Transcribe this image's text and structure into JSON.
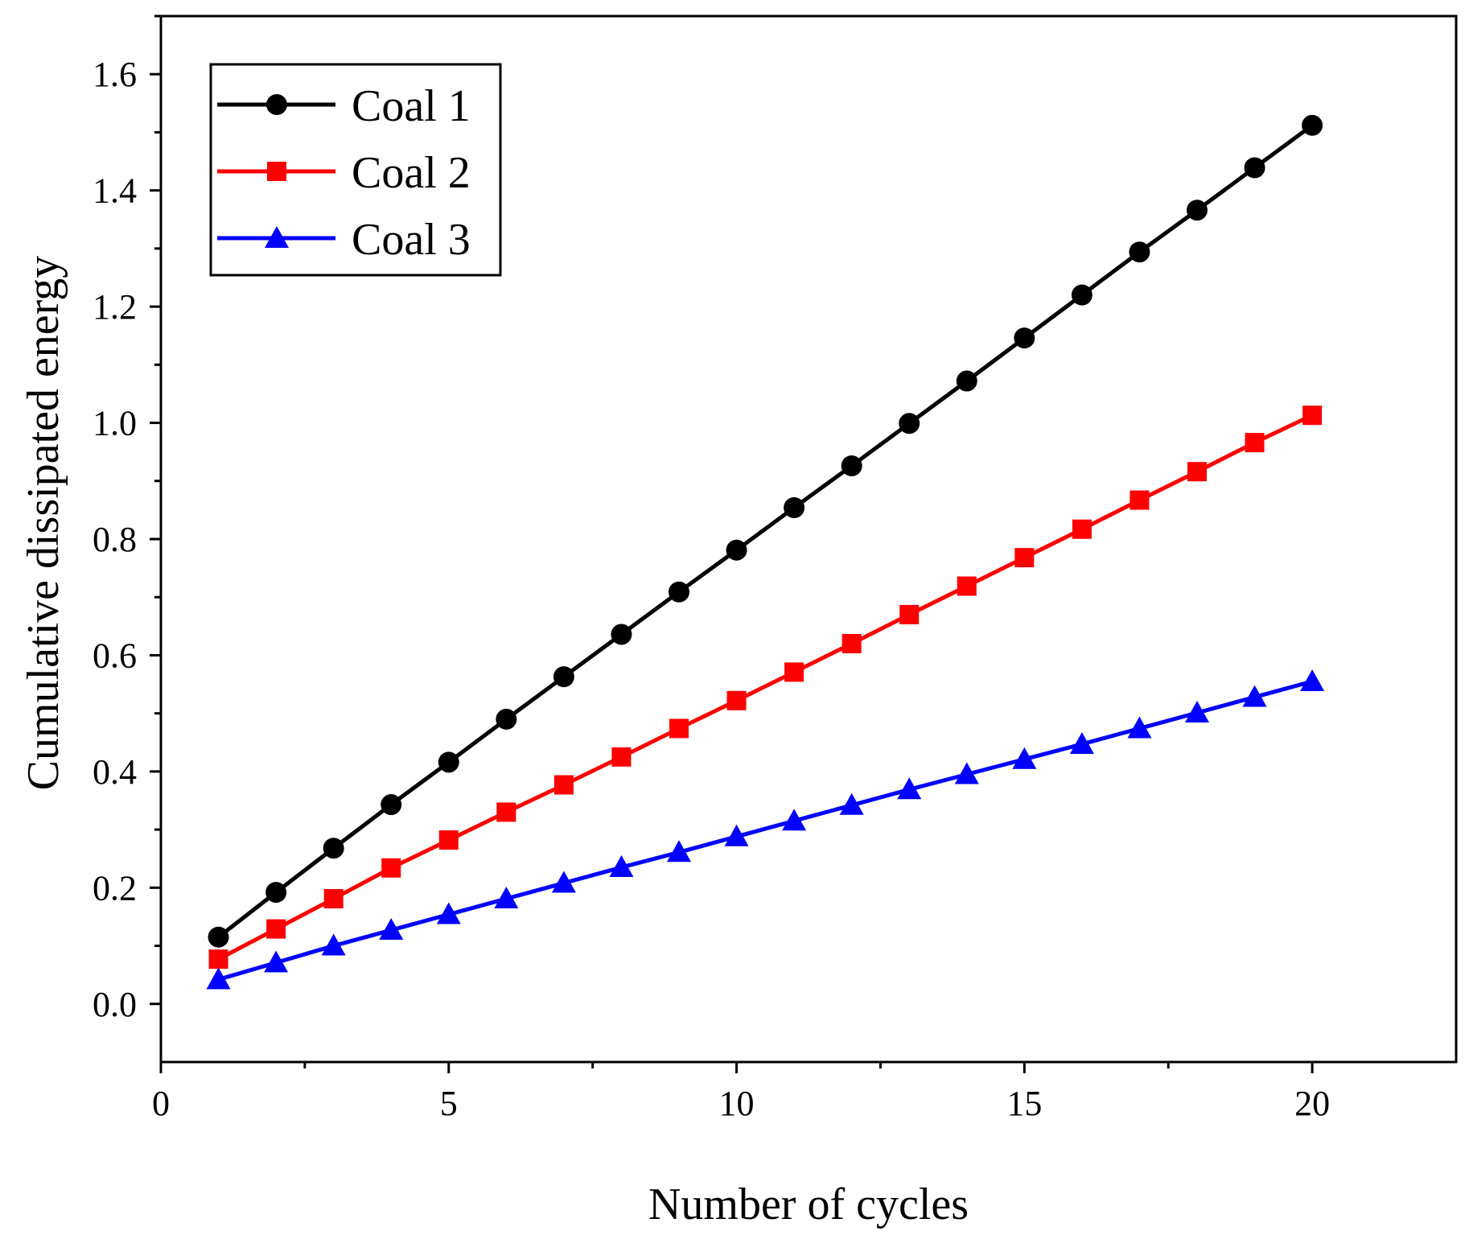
{
  "chart_data": {
    "type": "line",
    "title": "",
    "xlabel": "Number of cycles",
    "ylabel": "Cumulative dissipated energy",
    "xlim": [
      0,
      22.5
    ],
    "ylim": [
      -0.1,
      1.7
    ],
    "x_ticks": [
      0,
      5,
      10,
      15,
      20
    ],
    "x_tick_labels": [
      "0",
      "5",
      "10",
      "15",
      "20"
    ],
    "y_ticks": [
      0.0,
      0.2,
      0.4,
      0.6,
      0.8,
      1.0,
      1.2,
      1.4,
      1.6
    ],
    "y_tick_labels": [
      "0.0",
      "0.2",
      "0.4",
      "0.6",
      "0.8",
      "1.0",
      "1.2",
      "1.4",
      "1.6"
    ],
    "legend_position": "top-left",
    "grid": false,
    "x": [
      1,
      2,
      3,
      4,
      5,
      6,
      7,
      8,
      9,
      10,
      11,
      12,
      13,
      14,
      15,
      16,
      17,
      18,
      19,
      20
    ],
    "series": [
      {
        "name": "Coal 1",
        "color": "#000000",
        "marker": "circle",
        "values": [
          0.115,
          0.192,
          0.268,
          0.343,
          0.416,
          0.49,
          0.563,
          0.636,
          0.709,
          0.781,
          0.854,
          0.926,
          0.999,
          1.072,
          1.146,
          1.22,
          1.294,
          1.366,
          1.439,
          1.512
        ]
      },
      {
        "name": "Coal 2",
        "color": "#ff0000",
        "marker": "square",
        "values": [
          0.077,
          0.129,
          0.181,
          0.234,
          0.282,
          0.33,
          0.377,
          0.425,
          0.474,
          0.522,
          0.571,
          0.62,
          0.67,
          0.719,
          0.768,
          0.817,
          0.867,
          0.916,
          0.966,
          1.013
        ]
      },
      {
        "name": "Coal 3",
        "color": "#0000ff",
        "marker": "triangle",
        "values": [
          0.042,
          0.071,
          0.1,
          0.127,
          0.154,
          0.181,
          0.208,
          0.235,
          0.261,
          0.288,
          0.315,
          0.342,
          0.369,
          0.395,
          0.421,
          0.447,
          0.474,
          0.501,
          0.528,
          0.555
        ]
      }
    ]
  }
}
